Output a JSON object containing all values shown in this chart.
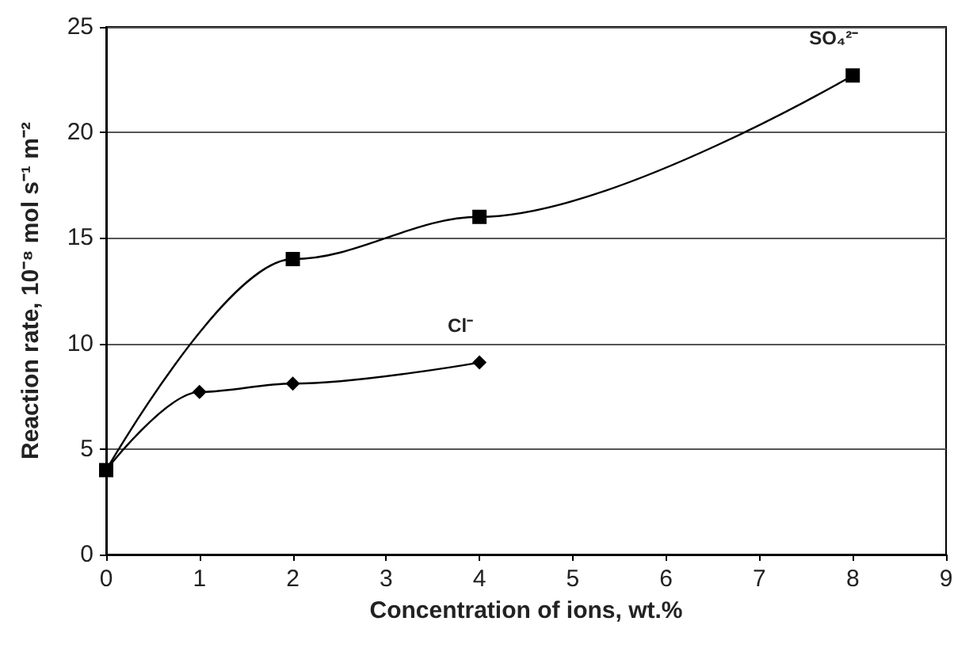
{
  "chart_data": {
    "type": "line",
    "xlabel": "Concentration of ions, wt.%",
    "ylabel": "Reaction rate, 10⁻⁸ mol s⁻¹ m⁻²",
    "series": [
      {
        "name": "SO₄²⁻",
        "color": "#000000",
        "marker": "square",
        "x": [
          0,
          2,
          4,
          8
        ],
        "values": [
          4,
          14,
          16,
          22.7
        ]
      },
      {
        "name": "Cl⁻",
        "color": "#000000",
        "marker": "diamond",
        "x": [
          0,
          1,
          2,
          4
        ],
        "values": [
          4,
          7.7,
          8.1,
          9.1
        ]
      }
    ],
    "xlim": [
      0,
      9
    ],
    "xticks": [
      0,
      1,
      2,
      3,
      4,
      5,
      6,
      7,
      8,
      9
    ],
    "ylim": [
      0,
      25
    ],
    "yticks": [
      0,
      5,
      10,
      15,
      20,
      25
    ],
    "grid": "y",
    "legend": false,
    "line_style": "solid"
  }
}
